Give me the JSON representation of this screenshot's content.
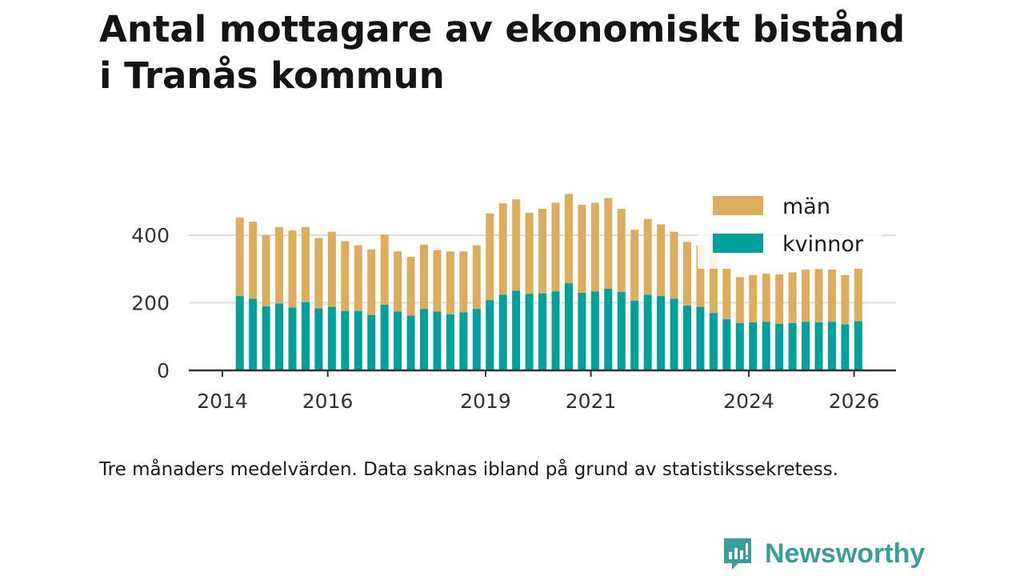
{
  "title_line1": "Antal mottagare av ekonomiskt bistånd",
  "title_line2": "i Tranås kommun",
  "caption": "Tre månaders medelvärden. Data saknas ibland på grund av statistikssekretess.",
  "brand": "Newsworthy",
  "colors": {
    "kvinnor": "#00a19a",
    "man": "#dcad5c",
    "axis": "#333333",
    "grid": "#dddddd",
    "brand": "#3a9e98"
  },
  "chart_data": {
    "type": "bar",
    "stacked": true,
    "title": "Antal mottagare av ekonomiskt bistånd i Tranås kommun",
    "xlabel": "",
    "ylabel": "",
    "ylim": [
      0,
      520
    ],
    "yticks": [
      0,
      200,
      400
    ],
    "xlim": [
      2014.0,
      2026.7
    ],
    "xticks": [
      2014,
      2016,
      2019,
      2021,
      2024,
      2026
    ],
    "legend_position": "top-right",
    "x": [
      2014.33,
      2014.58,
      2014.83,
      2015.08,
      2015.33,
      2015.58,
      2015.83,
      2016.08,
      2016.33,
      2016.58,
      2016.83,
      2017.08,
      2017.33,
      2017.58,
      2017.83,
      2018.08,
      2018.33,
      2018.58,
      2018.83,
      2019.08,
      2019.33,
      2019.58,
      2019.83,
      2020.08,
      2020.33,
      2020.58,
      2020.83,
      2021.08,
      2021.33,
      2021.58,
      2021.83,
      2022.08,
      2022.33,
      2022.58,
      2022.83,
      2023.08,
      2023.33,
      2023.58,
      2023.83,
      2024.08,
      2024.33,
      2024.58,
      2024.83,
      2025.08,
      2025.33,
      2025.58,
      2025.83,
      2026.08
    ],
    "series": [
      {
        "name": "kvinnor",
        "values": [
          220,
          212,
          190,
          198,
          186,
          202,
          184,
          188,
          176,
          176,
          164,
          194,
          174,
          162,
          182,
          174,
          166,
          172,
          182,
          208,
          224,
          236,
          226,
          228,
          234,
          258,
          230,
          234,
          242,
          232,
          206,
          224,
          220,
          212,
          192,
          188,
          170,
          152,
          140,
          142,
          144,
          138,
          140,
          144,
          142,
          144,
          136,
          146
        ]
      },
      {
        "name": "män",
        "values": [
          232,
          228,
          210,
          226,
          228,
          222,
          208,
          222,
          206,
          194,
          194,
          208,
          178,
          174,
          190,
          182,
          186,
          180,
          188,
          256,
          270,
          270,
          240,
          250,
          262,
          264,
          260,
          262,
          268,
          246,
          210,
          224,
          212,
          198,
          188,
          182,
          178,
          150,
          136,
          140,
          142,
          146,
          150,
          154,
          158,
          154,
          146,
          156
        ]
      }
    ]
  }
}
